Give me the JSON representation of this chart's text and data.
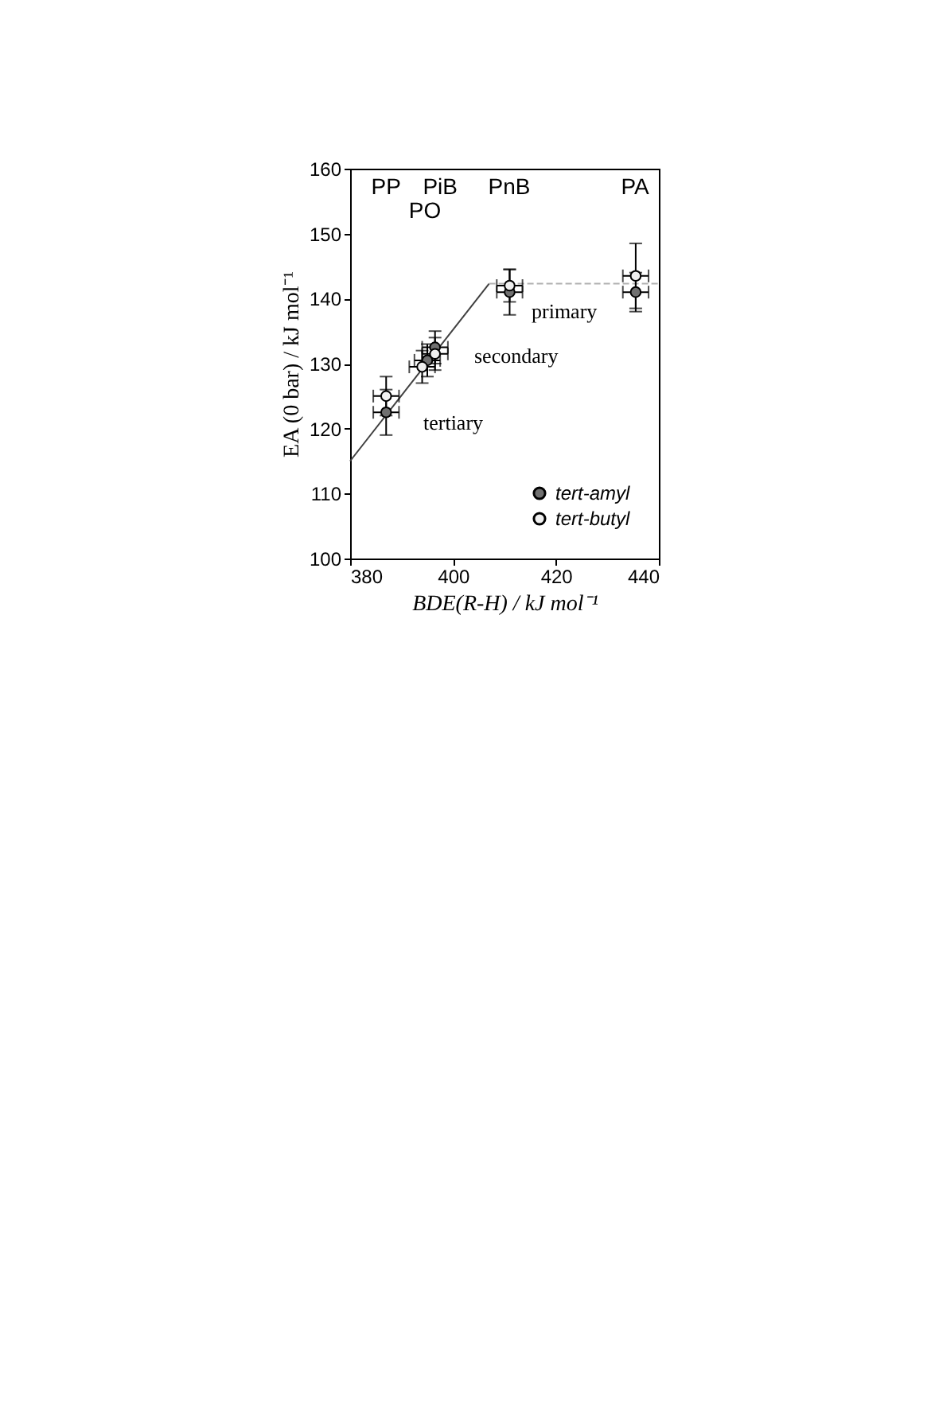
{
  "chart_data": {
    "type": "scatter",
    "xlabel": "BDE(R-H) / kJ mol⁻¹",
    "ylabel": "EA (0 bar) / kJ mol⁻¹",
    "xlim": [
      380,
      440
    ],
    "xticks": [
      380,
      400,
      420,
      440
    ],
    "ylim": [
      100,
      160
    ],
    "yticks": [
      100,
      110,
      120,
      130,
      140,
      150,
      160
    ],
    "grid": false,
    "legend": "bottom right",
    "marker": "circle",
    "series": [
      {
        "type": "line",
        "marker": "none",
        "color": "#404040",
        "line_style": "solid",
        "x": [
          380,
          407
        ],
        "values": [
          115,
          142.3
        ]
      },
      {
        "type": "line",
        "marker": "none",
        "color": "#b0b0b0",
        "line_style": "dashed",
        "x": [
          407,
          440
        ],
        "values": [
          142.3,
          142.3
        ]
      },
      {
        "name": "tert-amyl",
        "color": "#707070",
        "x": [
          387,
          395,
          396.5,
          411,
          435.5
        ],
        "values": [
          122.5,
          130.5,
          132.5,
          141,
          141
        ],
        "errors": [
          3.5,
          2.5,
          2.5,
          3.5,
          3
        ],
        "xerrors": [
          2.5,
          2.5,
          2.5,
          2.5,
          2.5
        ]
      },
      {
        "name": "tert-butyl",
        "color": "#f0f0f0",
        "x": [
          387,
          394,
          396.5,
          411,
          435.5
        ],
        "values": [
          125,
          129.5,
          131.5,
          142,
          143.5
        ],
        "errors": [
          3,
          2.5,
          2.5,
          2.5,
          5
        ],
        "xerrors": [
          2.5,
          2.5,
          2.5,
          2.5,
          2.5
        ]
      }
    ],
    "annotations": [
      "PP",
      "PO",
      "PiB",
      "PnB",
      "PA",
      "tertiary",
      "secondary",
      "primary"
    ]
  }
}
